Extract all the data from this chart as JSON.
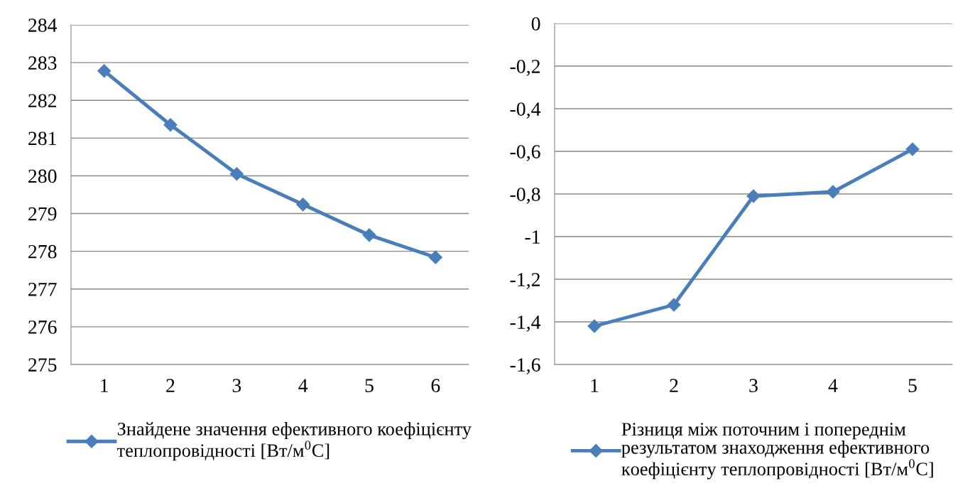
{
  "chart_data": [
    {
      "type": "line",
      "categories": [
        "1",
        "2",
        "3",
        "4",
        "5",
        "6"
      ],
      "series": [
        {
          "name": "Знайдене значення ефективного коефіцієнту\nтеплопровідності [Вт/м$^{0}$C]",
          "color": "#4a7ebb",
          "values": [
            282.78,
            281.35,
            280.05,
            279.24,
            278.43,
            277.84
          ]
        }
      ],
      "ylim": [
        275,
        284
      ],
      "yticks": [
        275,
        276,
        277,
        278,
        279,
        280,
        281,
        282,
        283,
        284
      ],
      "grid": "y",
      "legend": "bottom",
      "marker": "diamond",
      "line_style": "solid"
    },
    {
      "type": "line",
      "categories": [
        "1",
        "2",
        "3",
        "4",
        "5"
      ],
      "series": [
        {
          "name": "Різниця між поточним і попереднім\nрезультатом знаходження ефективного\nкоефіцієнту теплопровідності [Вт/м$^{0}$C]",
          "color": "#4a7ebb",
          "values": [
            -1.42,
            -1.32,
            -0.81,
            -0.79,
            -0.59
          ]
        }
      ],
      "ylim": [
        -1.6,
        0
      ],
      "yticks": [
        {
          "value": -1.6,
          "label": "-1,6"
        },
        {
          "value": -1.4,
          "label": "-1,4"
        },
        {
          "value": -1.2,
          "label": "-1,2"
        },
        {
          "value": -1,
          "label": "-1"
        },
        {
          "value": -0.8,
          "label": "-0,8"
        },
        {
          "value": -0.6,
          "label": "-0,6"
        },
        {
          "value": -0.4,
          "label": "-0,4"
        },
        {
          "value": -0.2,
          "label": "-0,2"
        },
        0
      ],
      "grid": "y",
      "legend": "bottom",
      "marker": "diamond",
      "line_style": "solid"
    }
  ]
}
